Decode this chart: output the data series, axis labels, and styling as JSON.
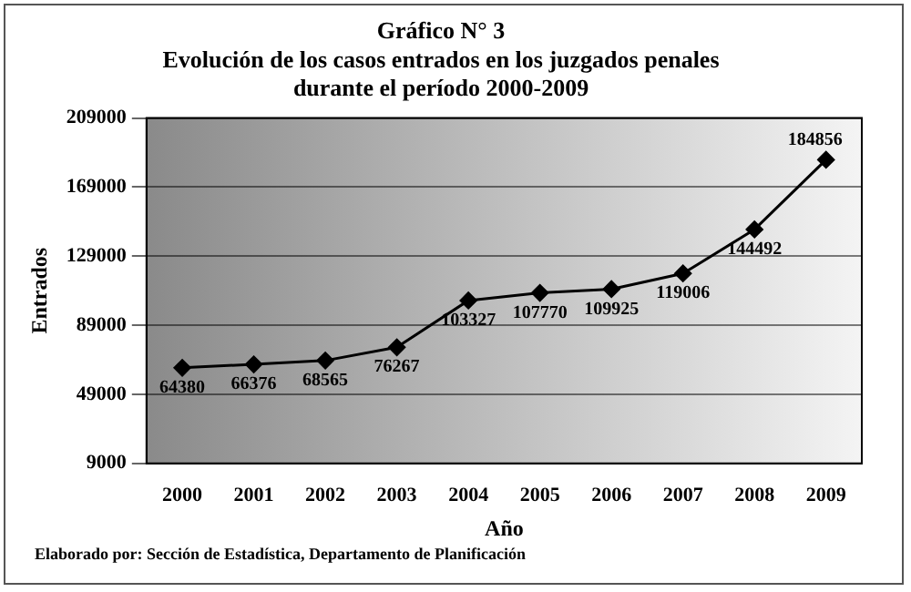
{
  "chart_data": {
    "type": "line",
    "title": "Gráfico N° 3\nEvolución de los casos entrados en los juzgados penales\ndurante el período 2000-2009",
    "xlabel": "Año",
    "ylabel": "Entrados",
    "categories": [
      "2000",
      "2001",
      "2002",
      "2003",
      "2004",
      "2005",
      "2006",
      "2007",
      "2008",
      "2009"
    ],
    "series": [
      {
        "color": "#000000",
        "values": [
          64380,
          66376,
          68565,
          76267,
          103327,
          107770,
          109925,
          119006,
          144492,
          184856
        ]
      }
    ],
    "ylim": [
      9000,
      209000
    ],
    "yticks": [
      9000,
      49000,
      89000,
      129000,
      169000,
      209000
    ],
    "grid": "y",
    "legend": false,
    "marker": "diamond",
    "line_style": "solid",
    "data_labels": true,
    "annotations": [
      "Elaborado por: Sección de Estadística, Departamento de Planificación"
    ]
  }
}
